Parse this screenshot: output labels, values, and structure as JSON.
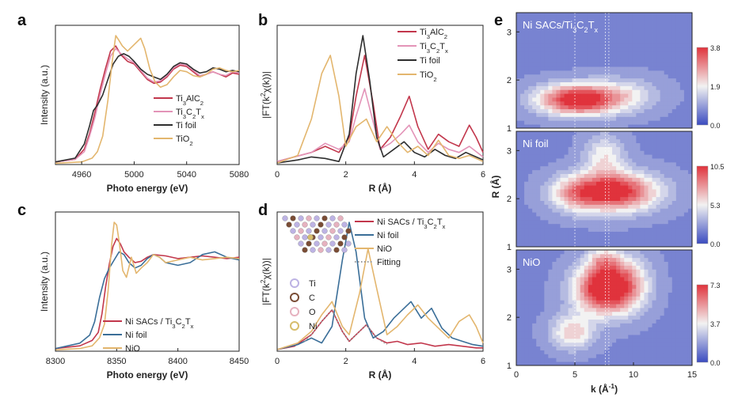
{
  "colors": {
    "series1": "#c2374c",
    "series2": "#e394b8",
    "series3": "#2e2e2e",
    "series4": "#e3b66e",
    "nifoil": "#3a6e98",
    "nio": "#e3b66e",
    "ti_atom": "#bdb3e4",
    "c_atom": "#7a4d36",
    "o_atom": "#e6b2bf",
    "ni_atom": "#d7bd6c"
  },
  "chart_data": [
    {
      "panel": "a",
      "type": "line",
      "xlabel": "Photo energy (eV)",
      "ylabel": "Intensity (a.u.)",
      "xlim": [
        4940,
        5080
      ],
      "xticks": [
        "4960",
        "5000",
        "5040",
        "5080"
      ],
      "legend_position": "right",
      "series": [
        {
          "name": "Ti3AlC2",
          "name_main": "Ti",
          "name_sub": [
            "3",
            "2"
          ],
          "name_parts": [
            "Ti",
            "3",
            "AlC",
            "2"
          ],
          "x": [
            4940,
            4955,
            4962,
            4966,
            4970,
            4974,
            4978,
            4982,
            4986,
            4990,
            4995,
            5000,
            5005,
            5010,
            5015,
            5020,
            5025,
            5030,
            5035,
            5040,
            5045,
            5050,
            5055,
            5060,
            5065,
            5070,
            5075,
            5080
          ],
          "y": [
            0.02,
            0.04,
            0.12,
            0.24,
            0.4,
            0.58,
            0.74,
            0.88,
            0.92,
            0.85,
            0.8,
            0.78,
            0.72,
            0.66,
            0.63,
            0.64,
            0.68,
            0.74,
            0.77,
            0.76,
            0.72,
            0.68,
            0.7,
            0.72,
            0.7,
            0.68,
            0.71,
            0.7
          ]
        },
        {
          "name": "Ti3C2Tx",
          "name_parts": [
            "Ti",
            "3",
            "C",
            "2",
            "T",
            "x"
          ],
          "x": [
            4940,
            4955,
            4962,
            4966,
            4970,
            4974,
            4978,
            4982,
            4986,
            4990,
            4995,
            5000,
            5005,
            5010,
            5015,
            5020,
            5025,
            5030,
            5035,
            5040,
            5045,
            5050,
            5055,
            5060,
            5065,
            5070,
            5075,
            5080
          ],
          "y": [
            0.02,
            0.04,
            0.1,
            0.22,
            0.36,
            0.54,
            0.7,
            0.84,
            0.9,
            0.86,
            0.82,
            0.79,
            0.73,
            0.67,
            0.64,
            0.65,
            0.69,
            0.75,
            0.78,
            0.77,
            0.73,
            0.69,
            0.7,
            0.72,
            0.7,
            0.69,
            0.72,
            0.71
          ]
        },
        {
          "name": "Ti foil",
          "x": [
            4940,
            4955,
            4962,
            4966,
            4969,
            4972,
            4976,
            4980,
            4984,
            4988,
            4992,
            4996,
            5000,
            5005,
            5010,
            5015,
            5020,
            5025,
            5030,
            5035,
            5040,
            5045,
            5050,
            5055,
            5060,
            5065,
            5070,
            5075,
            5080
          ],
          "y": [
            0.02,
            0.05,
            0.16,
            0.3,
            0.42,
            0.46,
            0.54,
            0.66,
            0.78,
            0.84,
            0.86,
            0.84,
            0.8,
            0.74,
            0.7,
            0.68,
            0.66,
            0.7,
            0.76,
            0.79,
            0.78,
            0.74,
            0.71,
            0.72,
            0.75,
            0.74,
            0.72,
            0.73,
            0.72
          ]
        },
        {
          "name": "TiO2",
          "name_parts": [
            "TiO",
            "2"
          ],
          "x": [
            4940,
            4960,
            4968,
            4972,
            4976,
            4980,
            4983,
            4986,
            4988,
            4991,
            4995,
            5000,
            5005,
            5008,
            5012,
            5016,
            5020,
            5025,
            5030,
            5035,
            5040,
            5045,
            5050,
            5055,
            5060,
            5065,
            5070,
            5075,
            5080
          ],
          "y": [
            0.01,
            0.02,
            0.05,
            0.1,
            0.22,
            0.5,
            0.78,
            1.0,
            0.97,
            0.92,
            0.88,
            0.93,
            0.98,
            0.9,
            0.74,
            0.64,
            0.6,
            0.62,
            0.68,
            0.73,
            0.72,
            0.69,
            0.68,
            0.7,
            0.74,
            0.75,
            0.73,
            0.72,
            0.73
          ]
        }
      ]
    },
    {
      "panel": "b",
      "type": "line",
      "xlabel": "R (Å)",
      "ylabel": "|FT(k²χ(k))|",
      "ylabel_parts": [
        "|FT(k",
        "2",
        "χ(k))|"
      ],
      "xlim": [
        0,
        6
      ],
      "xticks": [
        "0",
        "2",
        "4",
        "6"
      ],
      "legend_position": "top-right",
      "series": [
        {
          "name": "Ti3AlC2",
          "name_parts": [
            "Ti",
            "3",
            "AlC",
            "2"
          ],
          "x": [
            0,
            0.5,
            1.0,
            1.4,
            1.8,
            2.1,
            2.3,
            2.55,
            2.8,
            3.0,
            3.3,
            3.6,
            3.85,
            4.1,
            4.4,
            4.7,
            5.0,
            5.3,
            5.6,
            5.8,
            6.0
          ],
          "y": [
            0.02,
            0.05,
            0.08,
            0.12,
            0.08,
            0.18,
            0.45,
            0.72,
            0.4,
            0.1,
            0.18,
            0.32,
            0.45,
            0.25,
            0.1,
            0.2,
            0.15,
            0.12,
            0.26,
            0.18,
            0.08
          ]
        },
        {
          "name": "Ti3C2Tx",
          "name_parts": [
            "Ti",
            "3",
            "C",
            "2",
            "T",
            "x"
          ],
          "x": [
            0,
            0.5,
            1.0,
            1.4,
            1.8,
            2.1,
            2.3,
            2.55,
            2.8,
            3.0,
            3.3,
            3.6,
            3.85,
            4.1,
            4.4,
            4.7,
            5.0,
            5.3,
            5.6,
            6.0
          ],
          "y": [
            0.02,
            0.05,
            0.08,
            0.14,
            0.1,
            0.15,
            0.32,
            0.5,
            0.28,
            0.1,
            0.14,
            0.2,
            0.26,
            0.15,
            0.08,
            0.14,
            0.1,
            0.08,
            0.12,
            0.05
          ]
        },
        {
          "name": "Ti foil",
          "x": [
            0,
            0.6,
            1.0,
            1.4,
            1.8,
            2.1,
            2.3,
            2.5,
            2.7,
            2.9,
            3.1,
            3.4,
            3.7,
            4.0,
            4.3,
            4.6,
            4.9,
            5.2,
            5.5,
            5.8,
            6.0
          ],
          "y": [
            0.01,
            0.03,
            0.05,
            0.04,
            0.02,
            0.2,
            0.6,
            0.85,
            0.55,
            0.18,
            0.05,
            0.1,
            0.15,
            0.08,
            0.05,
            0.1,
            0.06,
            0.04,
            0.08,
            0.05,
            0.03
          ]
        },
        {
          "name": "TiO2",
          "name_parts": [
            "TiO",
            "2"
          ],
          "x": [
            0,
            0.6,
            1.0,
            1.3,
            1.55,
            1.8,
            2.0,
            2.3,
            2.6,
            2.9,
            3.2,
            3.5,
            3.8,
            4.1,
            4.4,
            4.7,
            5.0,
            5.3,
            5.6,
            6.0
          ],
          "y": [
            0.01,
            0.06,
            0.3,
            0.6,
            0.72,
            0.45,
            0.12,
            0.25,
            0.3,
            0.15,
            0.25,
            0.15,
            0.08,
            0.12,
            0.06,
            0.16,
            0.06,
            0.04,
            0.06,
            0.02
          ]
        }
      ]
    },
    {
      "panel": "c",
      "type": "line",
      "xlabel": "Photo energy (eV)",
      "ylabel": "Intensity (a.u.)",
      "xlim": [
        8300,
        8450
      ],
      "xticks": [
        "8300",
        "8350",
        "8400",
        "8450"
      ],
      "legend_position": "bottom-right",
      "series": [
        {
          "name": "Ni SACs / Ti3C2Tx",
          "name_parts": [
            "Ni SACs / Ti",
            "3",
            "C",
            "2",
            "T",
            "x"
          ],
          "x": [
            8300,
            8320,
            8330,
            8335,
            8338,
            8341,
            8344,
            8347,
            8350,
            8353,
            8356,
            8360,
            8365,
            8370,
            8375,
            8380,
            8390,
            8400,
            8410,
            8420,
            8430,
            8440,
            8450
          ],
          "y": [
            0.02,
            0.04,
            0.08,
            0.14,
            0.28,
            0.48,
            0.65,
            0.78,
            0.84,
            0.8,
            0.74,
            0.7,
            0.66,
            0.67,
            0.7,
            0.72,
            0.71,
            0.69,
            0.7,
            0.71,
            0.7,
            0.69,
            0.7
          ]
        },
        {
          "name": "Ni foil",
          "x": [
            8300,
            8320,
            8328,
            8332,
            8336,
            8340,
            8344,
            8348,
            8352,
            8356,
            8360,
            8365,
            8370,
            8375,
            8380,
            8385,
            8390,
            8400,
            8410,
            8420,
            8430,
            8440,
            8450
          ],
          "y": [
            0.02,
            0.06,
            0.12,
            0.22,
            0.4,
            0.54,
            0.62,
            0.68,
            0.74,
            0.72,
            0.66,
            0.62,
            0.64,
            0.69,
            0.72,
            0.7,
            0.66,
            0.64,
            0.66,
            0.72,
            0.74,
            0.7,
            0.68
          ]
        },
        {
          "name": "NiO",
          "x": [
            8300,
            8320,
            8330,
            8336,
            8340,
            8343,
            8346,
            8348,
            8350,
            8352,
            8355,
            8358,
            8362,
            8366,
            8370,
            8375,
            8380,
            8385,
            8390,
            8400,
            8410,
            8420,
            8430,
            8440,
            8450
          ],
          "y": [
            0.01,
            0.02,
            0.04,
            0.1,
            0.2,
            0.45,
            0.8,
            0.96,
            0.94,
            0.82,
            0.6,
            0.55,
            0.7,
            0.58,
            0.62,
            0.66,
            0.72,
            0.7,
            0.66,
            0.68,
            0.7,
            0.68,
            0.69,
            0.7,
            0.69
          ]
        }
      ]
    },
    {
      "panel": "d",
      "type": "line",
      "xlabel": "R (Å)",
      "ylabel": "|FT(k²χ(k))|",
      "ylabel_parts": [
        "|FT(k",
        "2",
        "χ(k))|"
      ],
      "xlim": [
        0,
        6
      ],
      "xticks": [
        "0",
        "2",
        "4",
        "6"
      ],
      "legend_position": "top-right",
      "series": [
        {
          "name": "Ni SACs / Ti3C2Tx",
          "name_parts": [
            "Ni SACs / Ti",
            "3",
            "C",
            "2",
            "T",
            "x"
          ],
          "x": [
            0,
            0.5,
            1.0,
            1.3,
            1.6,
            1.9,
            2.1,
            2.3,
            2.6,
            2.9,
            3.2,
            3.5,
            3.8,
            4.2,
            4.6,
            5.0,
            5.4,
            5.8,
            6.0
          ],
          "y": [
            0.01,
            0.03,
            0.1,
            0.18,
            0.25,
            0.12,
            0.06,
            0.1,
            0.16,
            0.08,
            0.05,
            0.06,
            0.04,
            0.05,
            0.03,
            0.04,
            0.03,
            0.02,
            0.02
          ]
        },
        {
          "name": "Ni foil",
          "x": [
            0,
            0.6,
            1.0,
            1.3,
            1.6,
            1.9,
            2.1,
            2.3,
            2.55,
            2.8,
            3.1,
            3.4,
            3.7,
            3.9,
            4.2,
            4.5,
            4.8,
            5.1,
            5.4,
            5.7,
            6.0
          ],
          "y": [
            0.01,
            0.04,
            0.08,
            0.05,
            0.15,
            0.55,
            0.78,
            0.6,
            0.2,
            0.08,
            0.12,
            0.2,
            0.26,
            0.3,
            0.2,
            0.26,
            0.14,
            0.08,
            0.06,
            0.04,
            0.03
          ]
        },
        {
          "name": "NiO",
          "x": [
            0,
            0.6,
            1.0,
            1.3,
            1.6,
            1.9,
            2.1,
            2.4,
            2.65,
            2.9,
            3.2,
            3.5,
            3.8,
            4.1,
            4.4,
            4.7,
            5.0,
            5.3,
            5.6,
            5.8,
            6.0
          ],
          "y": [
            0.01,
            0.05,
            0.12,
            0.22,
            0.3,
            0.15,
            0.1,
            0.35,
            0.62,
            0.38,
            0.1,
            0.15,
            0.22,
            0.28,
            0.2,
            0.14,
            0.08,
            0.18,
            0.22,
            0.15,
            0.05
          ]
        },
        {
          "name": "Fitting",
          "style": "dotted",
          "x": [
            0.8,
            1.0,
            1.3,
            1.6,
            1.9,
            2.1,
            2.3,
            2.6,
            2.9,
            3.2
          ],
          "y": [
            0.06,
            0.1,
            0.18,
            0.25,
            0.12,
            0.06,
            0.1,
            0.16,
            0.08,
            0.04
          ]
        }
      ],
      "atom_legend": [
        {
          "label": "Ti",
          "color_key": "ti_atom"
        },
        {
          "label": "C",
          "color_key": "c_atom"
        },
        {
          "label": "O",
          "color_key": "o_atom"
        },
        {
          "label": "Ni",
          "color_key": "ni_atom"
        }
      ]
    },
    {
      "panel": "e",
      "type": "heatmap",
      "xlabel": "k (Å⁻¹)",
      "xlabel_parts": [
        "k (Å",
        "-1",
        ")"
      ],
      "ylabel": "R (Å)",
      "xlim": [
        0,
        15
      ],
      "xticks": [
        "0",
        "5",
        "10",
        "15"
      ],
      "subplots": [
        {
          "title": "Ni SACs/Ti3C2Tx",
          "title_parts": [
            "Ni SACs/Ti",
            "3",
            "C",
            "2",
            "T",
            "x"
          ],
          "ylim": [
            1,
            3.4
          ],
          "yticks": [
            "1",
            "2",
            "3"
          ],
          "colorbar_ticks": [
            "3.8",
            "1.9",
            "0.0"
          ],
          "max": 3.8,
          "peaks": [
            {
              "k": 5.3,
              "R": 1.6,
              "amp": 1.0,
              "sk": 2.4,
              "sR": 0.22
            },
            {
              "k": 9.5,
              "R": 1.7,
              "amp": 0.25,
              "sk": 2.0,
              "sR": 0.25
            }
          ]
        },
        {
          "title": "Ni foil",
          "ylim": [
            1,
            3.4
          ],
          "yticks": [
            "1",
            "2",
            "3"
          ],
          "colorbar_ticks": [
            "10.5",
            "5.3",
            "0.0"
          ],
          "max": 10.5,
          "peaks": [
            {
              "k": 8.2,
              "R": 2.15,
              "amp": 1.0,
              "sk": 2.6,
              "sR": 0.28
            },
            {
              "k": 7.5,
              "R": 2.9,
              "amp": 0.35,
              "sk": 1.2,
              "sR": 0.3
            },
            {
              "k": 4.8,
              "R": 2.1,
              "amp": 0.3,
              "sk": 1.4,
              "sR": 0.25
            }
          ]
        },
        {
          "title": "NiO",
          "ylim": [
            1,
            3.4
          ],
          "yticks": [
            "1",
            "2",
            "3"
          ],
          "colorbar_ticks": [
            "7.3",
            "3.7",
            "0.0"
          ],
          "max": 7.3,
          "peaks": [
            {
              "k": 7.4,
              "R": 2.6,
              "amp": 1.0,
              "sk": 1.7,
              "sR": 0.35
            },
            {
              "k": 4.8,
              "R": 1.7,
              "amp": 0.45,
              "sk": 1.3,
              "sR": 0.25
            },
            {
              "k": 9.5,
              "R": 2.7,
              "amp": 0.4,
              "sk": 1.4,
              "sR": 0.4
            },
            {
              "k": 7.5,
              "R": 3.2,
              "amp": 0.35,
              "sk": 1.0,
              "sR": 0.2
            }
          ]
        }
      ]
    }
  ]
}
